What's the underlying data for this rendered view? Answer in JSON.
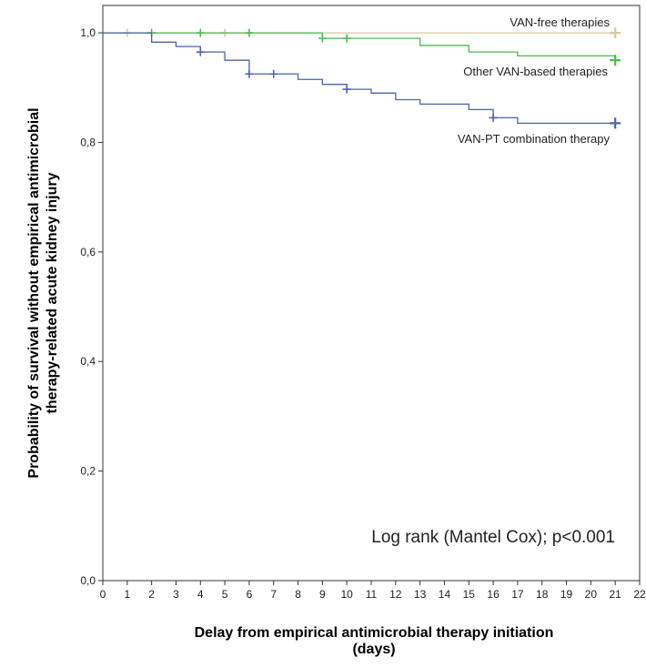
{
  "chart_data": {
    "type": "line",
    "step": true,
    "title": "",
    "xlabel_lines": [
      "Delay from empirical antimicrobial therapy initiation",
      "(days)"
    ],
    "ylabel_lines": [
      "Probability of survival without empirical antimicrobial",
      "therapy-related acute kidney injury"
    ],
    "xlim": [
      0,
      22
    ],
    "ylim": [
      0,
      1.05
    ],
    "x_ticks": [
      0,
      1,
      2,
      3,
      4,
      5,
      6,
      7,
      8,
      9,
      10,
      11,
      12,
      13,
      14,
      15,
      16,
      17,
      18,
      19,
      20,
      21,
      22
    ],
    "x_tick_labels": [
      "0",
      "1",
      "2",
      "3",
      "4",
      "5",
      "6",
      "7",
      "8",
      "9",
      "10",
      "11",
      "12",
      "13",
      "14",
      "15",
      "16",
      "17",
      "18",
      "19",
      "20",
      "21",
      "22"
    ],
    "y_ticks": [
      0,
      0.2,
      0.4,
      0.6,
      0.8,
      1.0
    ],
    "y_tick_labels": [
      "0,0",
      "0,2",
      "0,4",
      "0,6",
      "0,8",
      "1,0"
    ],
    "grid": false,
    "annotation": "Log rank (Mantel Cox); p<0.001",
    "series": [
      {
        "name": "VAN-free therapies",
        "color": "#d9c9a0",
        "steps": [
          [
            0,
            1.0
          ],
          [
            21,
            1.0
          ]
        ],
        "censored": [
          [
            1,
            1.0
          ],
          [
            5,
            1.0
          ],
          [
            21,
            1.0
          ]
        ]
      },
      {
        "name": "Other VAN-based therapies",
        "color": "#4db84d",
        "steps": [
          [
            0,
            1.0
          ],
          [
            9,
            0.99
          ],
          [
            13,
            0.977
          ],
          [
            15,
            0.965
          ],
          [
            17,
            0.958
          ],
          [
            21,
            0.95
          ]
        ],
        "censored": [
          [
            2,
            1.0
          ],
          [
            4,
            1.0
          ],
          [
            6,
            1.0
          ],
          [
            9,
            0.99
          ],
          [
            10,
            0.99
          ],
          [
            21,
            0.95
          ]
        ]
      },
      {
        "name": "VAN-PT combination therapy",
        "color": "#4a63b0",
        "steps": [
          [
            0,
            1.0
          ],
          [
            2,
            0.983
          ],
          [
            3,
            0.975
          ],
          [
            4,
            0.965
          ],
          [
            5,
            0.95
          ],
          [
            6,
            0.925
          ],
          [
            8,
            0.915
          ],
          [
            9,
            0.906
          ],
          [
            10,
            0.897
          ],
          [
            11,
            0.89
          ],
          [
            12,
            0.878
          ],
          [
            13,
            0.87
          ],
          [
            15,
            0.86
          ],
          [
            16,
            0.845
          ],
          [
            17,
            0.835
          ],
          [
            21,
            0.835
          ]
        ],
        "censored": [
          [
            4,
            0.965
          ],
          [
            6,
            0.925
          ],
          [
            7,
            0.925
          ],
          [
            10,
            0.897
          ],
          [
            16,
            0.845
          ],
          [
            21,
            0.835
          ]
        ]
      }
    ]
  }
}
